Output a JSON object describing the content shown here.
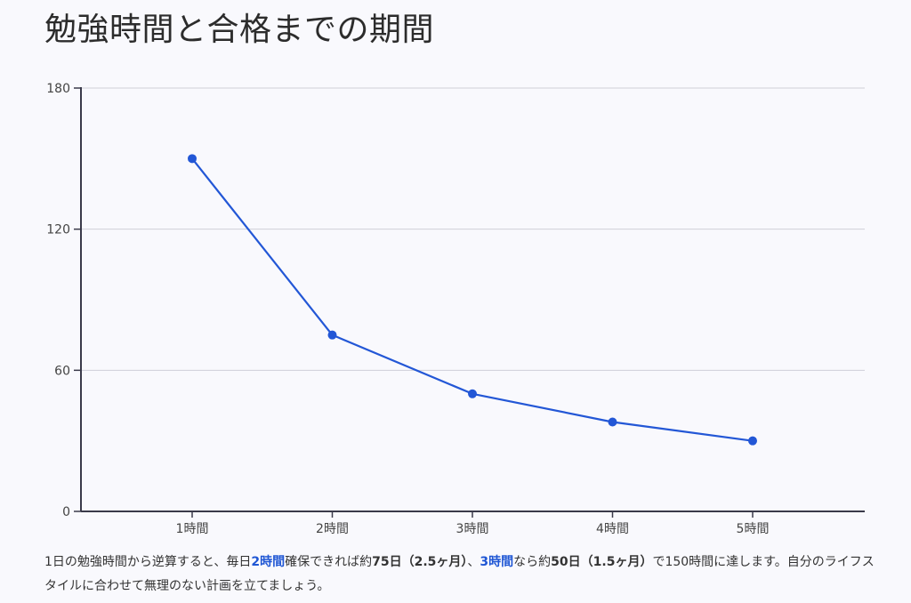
{
  "title": "勉強時間と合格までの期間",
  "colors": {
    "line": "#2357d6",
    "grid": "#cfcfd8",
    "axis": "#3a3a4a",
    "highlight": "#1f56d4"
  },
  "chart_data": {
    "type": "line",
    "title": "",
    "xlabel": "",
    "ylabel": "",
    "categories": [
      "1時間",
      "2時間",
      "3時間",
      "4時間",
      "5時間"
    ],
    "values": [
      150,
      75,
      50,
      38,
      30
    ],
    "ylim": [
      0,
      180
    ],
    "yticks": [
      0,
      60,
      120,
      180
    ],
    "grid": true
  },
  "caption": {
    "p1": "1日の勉強時間から逆算すると、毎日",
    "hl1": "2時間",
    "p2": "確保できれば約",
    "b1": "75日（2.5ヶ月）",
    "p3": "、",
    "hl2": "3時間",
    "p4": "なら約",
    "b2": "50日（1.5ヶ月）",
    "p5": "で150時間に達します。自分のライフスタイルに合わせて無理のない計画を立てましょう。"
  }
}
